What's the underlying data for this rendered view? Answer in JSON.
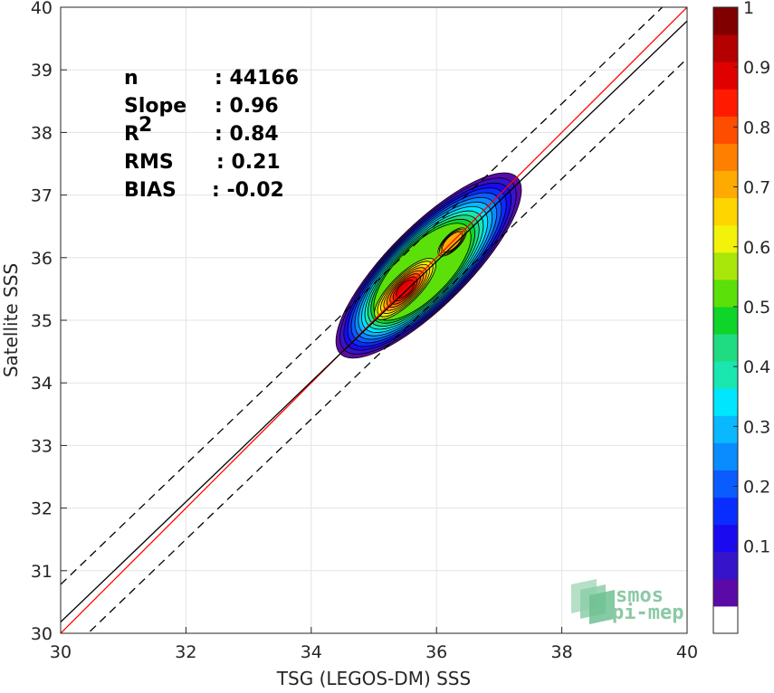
{
  "chart_data": {
    "type": "heatmap",
    "xlabel": "TSG (LEGOS-DM) SSS",
    "ylabel": "Satellite SSS",
    "xlim": [
      30,
      40
    ],
    "ylim": [
      30,
      40
    ],
    "xticks": [
      30,
      32,
      34,
      36,
      38,
      40
    ],
    "yticks": [
      30,
      31,
      32,
      33,
      34,
      35,
      36,
      37,
      38,
      39,
      40
    ],
    "grid": true,
    "stats": [
      {
        "key": "n",
        "value": ": 44166"
      },
      {
        "key": "Slope",
        "value": ": 0.96"
      },
      {
        "key": "R",
        "sup": "2",
        "value": ": 0.84"
      },
      {
        "key": "RMS",
        "value": ": 0.21"
      },
      {
        "key": "BIAS",
        "value": ": -0.02"
      }
    ],
    "lines": [
      {
        "name": "identity",
        "color": "#ff0000",
        "slope": 1.0,
        "intercept": 0.0,
        "dash": false
      },
      {
        "name": "regression",
        "color": "#000000",
        "slope": 0.96,
        "intercept": 1.38,
        "dash": false
      },
      {
        "name": "upper-bound",
        "color": "#000000",
        "slope": 0.96,
        "intercept": 1.98,
        "dash": true
      },
      {
        "name": "lower-bound",
        "color": "#000000",
        "slope": 0.96,
        "intercept": 0.78,
        "dash": true
      }
    ],
    "density_peak": {
      "x": 35.5,
      "y": 35.5
    },
    "density_secondary": {
      "x": 36.25,
      "y": 36.25
    },
    "colorbar": {
      "ticks": [
        "0.1",
        "0.2",
        "0.3",
        "0.4",
        "0.5",
        "0.6",
        "0.7",
        "0.8",
        "0.9",
        "1"
      ],
      "range": [
        0,
        1
      ],
      "levels": [
        "#ffffff",
        "#5b0aa8",
        "#3514c9",
        "#1a0af0",
        "#0a2dff",
        "#0a5cff",
        "#0a8cff",
        "#0ab8ff",
        "#00e6ff",
        "#1ae6b0",
        "#1fdc82",
        "#0fd42a",
        "#5be00a",
        "#a9e60a",
        "#f2f20a",
        "#ffd500",
        "#ffaa00",
        "#ff8000",
        "#ff4d00",
        "#ff1a00",
        "#e00000",
        "#b30000",
        "#800000"
      ]
    }
  },
  "logo": {
    "line1": "smos",
    "line2": "pi-mep"
  }
}
